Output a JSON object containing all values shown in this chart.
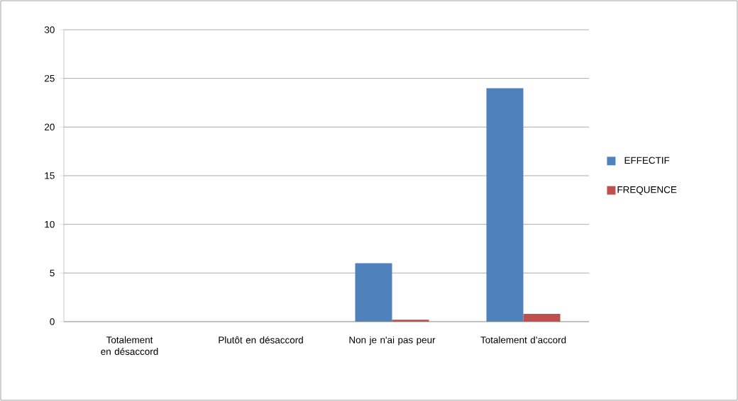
{
  "chart_data": {
    "type": "bar",
    "categories": [
      "Totalement en désaccord",
      "Plutôt en désaccord",
      "Non je n'ai pas peur",
      "Totalement d’accord"
    ],
    "series": [
      {
        "name": "EFFECTIF",
        "color": "#4f81bd",
        "values": [
          0,
          0,
          6,
          24
        ]
      },
      {
        "name": "FREQUENCE",
        "color": "#c0504d",
        "values": [
          0,
          0,
          0.2,
          0.8
        ]
      }
    ],
    "ylim": [
      0,
      30
    ],
    "yticks": [
      0,
      5,
      10,
      15,
      20,
      25,
      30
    ],
    "grid": "y",
    "legend": "right"
  }
}
